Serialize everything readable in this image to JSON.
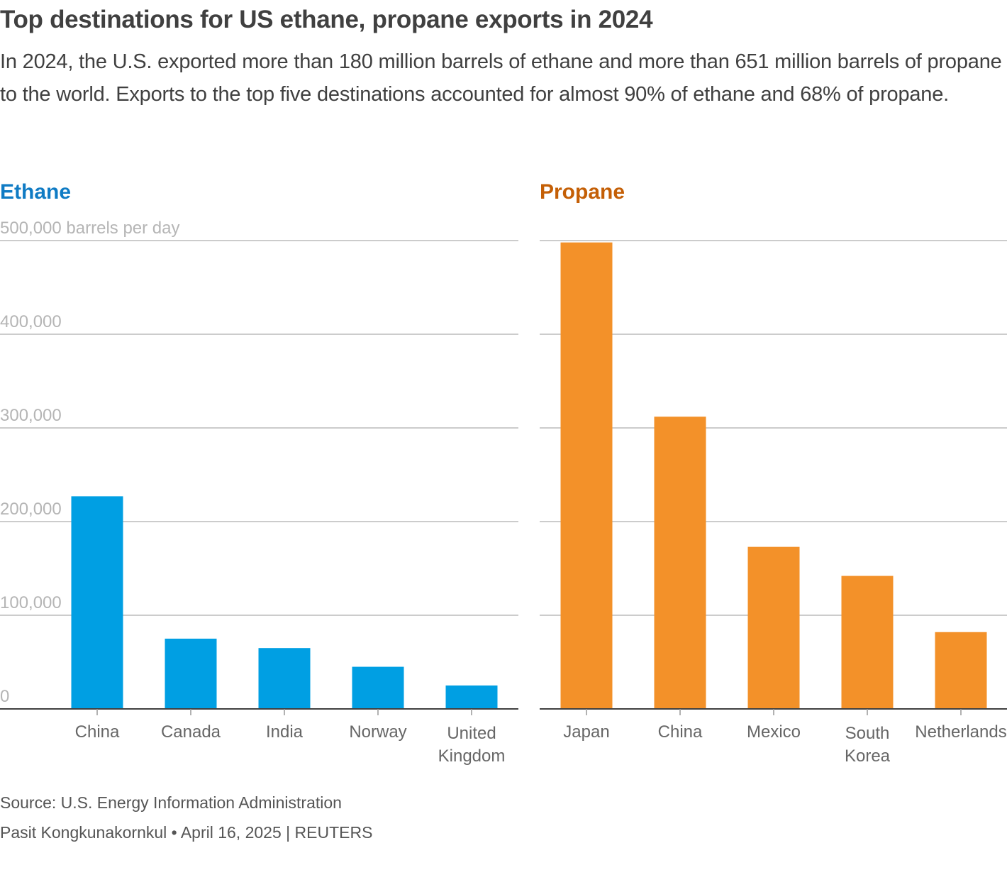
{
  "title": "Top destinations for US ethane, propane exports in 2024",
  "subtitle": "In 2024, the U.S. exported more than 180 million barrels of ethane and more than 651 million barrels of propane to the world. Exports to the top five destinations accounted for almost 90% of ethane and 68% of propane.",
  "source": "Source: U.S. Energy Information Administration",
  "byline": "Pasit Kongkunakornkul • April 16, 2025 | REUTERS",
  "colors": {
    "ethane": "#009fe3",
    "ethane_title": "#0f7bc4",
    "propane": "#f39129",
    "propane_title": "#c45f06"
  },
  "chart_data": [
    {
      "type": "bar",
      "title": "Ethane",
      "ylabel": "",
      "yunit_label": "500,000 barrels per day",
      "ylim": [
        0,
        500000
      ],
      "yticks": [
        0,
        100000,
        200000,
        300000,
        400000,
        500000
      ],
      "ytick_labels": [
        "0",
        "100,000",
        "200,000",
        "300,000",
        "400,000",
        "500,000 barrels per day"
      ],
      "categories": [
        [
          "China"
        ],
        [
          "Canada"
        ],
        [
          "India"
        ],
        [
          "Norway"
        ],
        [
          "United",
          "Kingdom"
        ]
      ],
      "values": [
        227000,
        75000,
        65000,
        45000,
        25000
      ],
      "color": "#009fe3",
      "grid": true
    },
    {
      "type": "bar",
      "title": "Propane",
      "ylim": [
        0,
        500000
      ],
      "yticks": [
        0,
        100000,
        200000,
        300000,
        400000,
        500000
      ],
      "categories": [
        [
          "Japan"
        ],
        [
          "China"
        ],
        [
          "Mexico"
        ],
        [
          "South",
          "Korea"
        ],
        [
          "Netherlands"
        ]
      ],
      "values": [
        498000,
        312000,
        173000,
        142000,
        82000
      ],
      "color": "#f39129",
      "grid": true
    }
  ]
}
